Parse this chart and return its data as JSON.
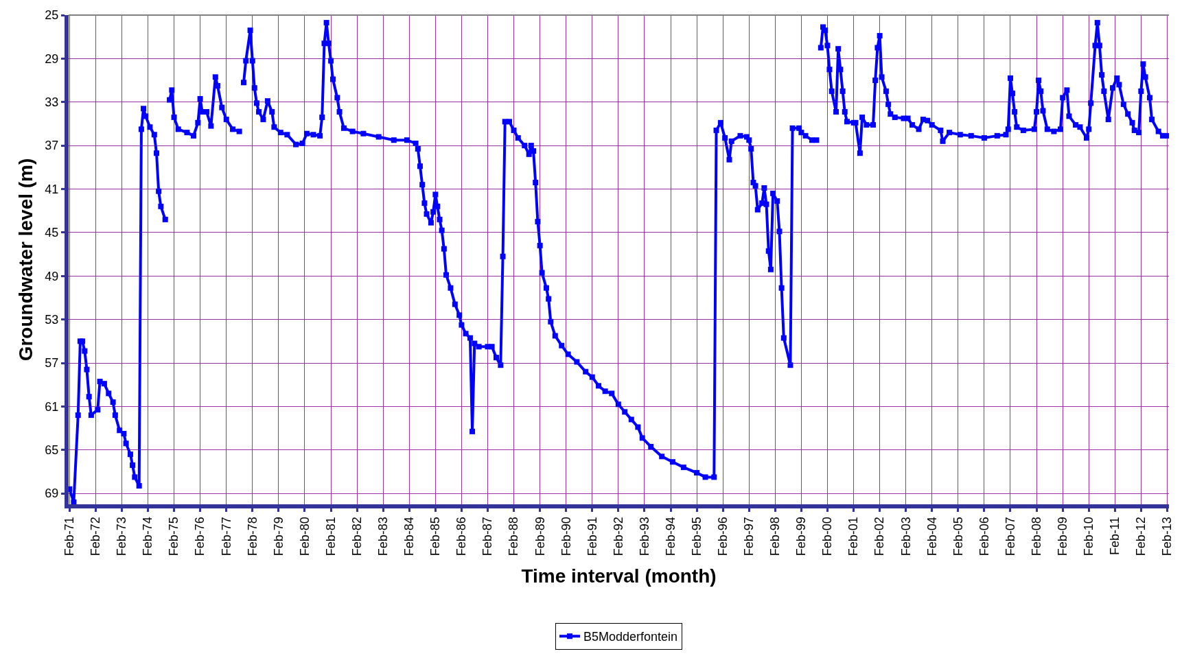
{
  "chart_data": {
    "type": "line",
    "xlabel": "Time interval (month)",
    "ylabel": "Groundwater level (m)",
    "ylim": [
      70,
      25
    ],
    "yticks": [
      25,
      29,
      33,
      37,
      41,
      45,
      49,
      53,
      57,
      61,
      65,
      69
    ],
    "xlim": [
      "1971-01-20",
      "2013-02-25"
    ],
    "xticks": [
      {
        "value": "1971-02",
        "label": "Feb-71"
      },
      {
        "value": "1972-02",
        "label": "Feb-72"
      },
      {
        "value": "1973-02",
        "label": "Feb-73"
      },
      {
        "value": "1974-02",
        "label": "Feb-74"
      },
      {
        "value": "1975-02",
        "label": "Feb-75"
      },
      {
        "value": "1976-02",
        "label": "Feb-76"
      },
      {
        "value": "1977-02",
        "label": "Feb-77"
      },
      {
        "value": "1978-02",
        "label": "Feb-78"
      },
      {
        "value": "1979-02",
        "label": "Feb-79"
      },
      {
        "value": "1980-02",
        "label": "Feb-80"
      },
      {
        "value": "1981-02",
        "label": "Feb-81"
      },
      {
        "value": "1982-02",
        "label": "Feb-82"
      },
      {
        "value": "1983-02",
        "label": "Feb-83"
      },
      {
        "value": "1984-02",
        "label": "Feb-84"
      },
      {
        "value": "1985-02",
        "label": "Feb-85"
      },
      {
        "value": "1986-02",
        "label": "Feb-86"
      },
      {
        "value": "1987-02",
        "label": "Feb-87"
      },
      {
        "value": "1988-02",
        "label": "Feb-88"
      },
      {
        "value": "1989-02",
        "label": "Feb-89"
      },
      {
        "value": "1990-02",
        "label": "Feb-90"
      },
      {
        "value": "1991-02",
        "label": "Feb-91"
      },
      {
        "value": "1992-02",
        "label": "Feb-92"
      },
      {
        "value": "1993-02",
        "label": "Feb-93"
      },
      {
        "value": "1994-02",
        "label": "Feb-94"
      },
      {
        "value": "1995-02",
        "label": "Feb-95"
      },
      {
        "value": "1996-02",
        "label": "Feb-96"
      },
      {
        "value": "1997-02",
        "label": "Feb-97"
      },
      {
        "value": "1998-02",
        "label": "Feb-98"
      },
      {
        "value": "1999-02",
        "label": "Feb-99"
      },
      {
        "value": "2000-02",
        "label": "Feb-00"
      },
      {
        "value": "2001-02",
        "label": "Feb-01"
      },
      {
        "value": "2002-02",
        "label": "Feb-02"
      },
      {
        "value": "2003-02",
        "label": "Feb-03"
      },
      {
        "value": "2004-02",
        "label": "Feb-04"
      },
      {
        "value": "2005-02",
        "label": "Feb-05"
      },
      {
        "value": "2006-02",
        "label": "Feb-06"
      },
      {
        "value": "2007-02",
        "label": "Feb-07"
      },
      {
        "value": "2008-02",
        "label": "Feb-08"
      },
      {
        "value": "2009-02",
        "label": "Feb-09"
      },
      {
        "value": "2010-02",
        "label": "Feb-10"
      },
      {
        "value": "2011-02",
        "label": "Feb-11"
      },
      {
        "value": "2012-02",
        "label": "Feb-12"
      },
      {
        "value": "2013-02",
        "label": "Feb-13"
      }
    ],
    "grid": true,
    "legend": "bottom",
    "marker": "square",
    "line_style": "solid",
    "x": [
      "1971-02",
      "1971-04",
      "1971-06",
      "1971-07",
      "1971-08",
      "1971-09",
      "1971-10",
      "1971-11",
      "1971-12",
      "1972-03",
      "1972-04",
      "1972-06",
      "1972-08",
      "1972-10",
      "1972-11",
      "1973-01",
      "1973-03",
      "1973-04",
      "1973-06",
      "1973-07",
      "1973-08",
      "1973-10",
      "1973-11",
      "1973-12",
      "1974-01",
      "1974-03",
      "1974-05",
      "1974-06",
      "1974-07",
      "1974-08",
      "1974-10",
      "1974-11",
      "1974-12",
      "1975-01",
      "1975-02",
      "1975-04",
      "1975-08",
      "1975-11",
      "1976-01",
      "1976-02",
      "1976-03",
      "1976-05",
      "1976-07",
      "1976-09",
      "1976-10",
      "1976-12",
      "1977-02",
      "1977-05",
      "1977-08",
      "1977-09",
      "1977-10",
      "1977-11",
      "1978-01",
      "1978-02",
      "1978-03",
      "1978-04",
      "1978-05",
      "1978-07",
      "1978-09",
      "1978-11",
      "1978-12",
      "1979-03",
      "1979-06",
      "1979-10",
      "1980-01",
      "1980-03",
      "1980-06",
      "1980-09",
      "1980-10",
      "1980-11",
      "1980-12",
      "1981-01",
      "1981-02",
      "1981-03",
      "1981-05",
      "1981-06",
      "1981-08",
      "1981-12",
      "1982-05",
      "1982-12",
      "1983-07",
      "1984-01",
      "1984-05",
      "1984-06",
      "1984-07",
      "1984-08",
      "1984-09",
      "1984-10",
      "1984-12",
      "1985-01",
      "1985-02",
      "1985-03",
      "1985-04",
      "1985-05",
      "1985-06",
      "1985-07",
      "1985-09",
      "1985-11",
      "1986-01",
      "1986-02",
      "1986-04",
      "1986-06",
      "1986-07",
      "1986-08",
      "1986-10",
      "1987-02",
      "1987-04",
      "1987-06",
      "1987-08",
      "1987-09",
      "1987-10",
      "1987-12",
      "1988-02",
      "1988-04",
      "1988-07",
      "1988-09",
      "1988-10",
      "1988-11",
      "1988-12",
      "1989-01",
      "1989-02",
      "1989-03",
      "1989-05",
      "1989-06",
      "1989-07",
      "1989-09",
      "1989-12",
      "1990-03",
      "1990-07",
      "1990-11",
      "1991-02",
      "1991-05",
      "1991-08",
      "1991-11",
      "1992-02",
      "1992-05",
      "1992-08",
      "1992-11",
      "1993-01",
      "1993-05",
      "1993-10",
      "1994-03",
      "1994-08",
      "1995-02",
      "1995-06",
      "1995-10",
      "1995-11",
      "1996-01",
      "1996-03",
      "1996-05",
      "1996-06",
      "1996-10",
      "1997-01",
      "1997-02",
      "1997-03",
      "1997-04",
      "1997-05",
      "1997-06",
      "1997-08",
      "1997-09",
      "1997-10",
      "1997-11",
      "1997-12",
      "1998-01",
      "1998-03",
      "1998-04",
      "1998-05",
      "1998-06",
      "1998-09",
      "1998-10",
      "1999-01",
      "1999-02",
      "1999-04",
      "1999-07",
      "1999-09",
      "1999-10",
      "1999-11",
      "1999-12",
      "2000-01",
      "2000-02",
      "2000-03",
      "2000-04",
      "2000-06",
      "2000-07",
      "2000-08",
      "2000-09",
      "2000-10",
      "2000-11",
      "2001-02",
      "2001-03",
      "2001-05",
      "2001-06",
      "2001-08",
      "2001-11",
      "2001-12",
      "2002-01",
      "2002-02",
      "2002-03",
      "2002-05",
      "2002-06",
      "2002-07",
      "2002-09",
      "2003-01",
      "2003-03",
      "2003-05",
      "2003-08",
      "2003-10",
      "2003-12",
      "2004-02",
      "2004-06",
      "2004-07",
      "2004-10",
      "2005-03",
      "2005-08",
      "2006-02",
      "2006-08",
      "2006-12",
      "2007-01",
      "2007-02",
      "2007-03",
      "2007-04",
      "2007-05",
      "2007-08",
      "2008-01",
      "2008-02",
      "2008-03",
      "2008-04",
      "2008-05",
      "2008-07",
      "2008-10",
      "2009-01",
      "2009-02",
      "2009-04",
      "2009-05",
      "2009-08",
      "2009-10",
      "2010-01",
      "2010-02",
      "2010-03",
      "2010-05",
      "2010-06",
      "2010-07",
      "2010-08",
      "2010-09",
      "2010-11",
      "2011-01",
      "2011-03",
      "2011-04",
      "2011-06",
      "2011-08",
      "2011-10",
      "2011-11",
      "2012-01",
      "2012-02",
      "2012-03",
      "2012-04",
      "2012-06",
      "2012-07",
      "2012-10",
      "2012-12",
      "2013-02"
    ],
    "series": [
      {
        "name": "B5Modderfontein",
        "color": "#0000ff",
        "values": [
          68.6,
          69.8,
          61.8,
          55,
          55,
          55.9,
          57.6,
          60.1,
          61.8,
          61.3,
          58.7,
          58.9,
          59.8,
          60.6,
          61.8,
          63.2,
          63.5,
          64.4,
          65.4,
          66.4,
          67.5,
          68.3,
          35.5,
          33.6,
          34.3,
          35.3,
          36,
          37.7,
          41.2,
          42.6,
          43.8,
          null,
          32.8,
          31.9,
          34.4,
          35.5,
          35.8,
          36.1,
          34.9,
          32.7,
          33.9,
          33.9,
          35.2,
          30.7,
          31.5,
          33.5,
          34.6,
          35.5,
          35.7,
          null,
          31.2,
          29.2,
          26.4,
          29.2,
          31.7,
          33.1,
          33.9,
          34.6,
          32.9,
          33.9,
          35.3,
          35.8,
          36,
          36.9,
          36.8,
          35.9,
          36,
          36.1,
          34.4,
          27.6,
          25.7,
          27.6,
          29.2,
          30.9,
          32.6,
          33.9,
          35.4,
          35.7,
          35.9,
          36.2,
          36.5,
          36.5,
          36.8,
          37.3,
          38.9,
          40.6,
          42.3,
          43.3,
          44.1,
          43.1,
          41.5,
          42.6,
          43.8,
          44.8,
          46.5,
          48.9,
          50.1,
          51.6,
          52.6,
          53.5,
          54.3,
          54.7,
          63.3,
          55.2,
          55.5,
          55.5,
          55.5,
          56.5,
          57.2,
          47.2,
          34.8,
          34.8,
          35.6,
          36.3,
          37,
          37.8,
          37,
          37.5,
          40.4,
          44,
          46.2,
          48.7,
          50.1,
          51.1,
          53.2,
          54.5,
          55.4,
          56.2,
          56.9,
          57.8,
          58.3,
          59.1,
          59.6,
          59.8,
          60.8,
          61.5,
          62.2,
          62.9,
          63.9,
          64.7,
          65.6,
          66.1,
          66.6,
          67.1,
          67.5,
          67.5,
          35.6,
          34.9,
          36.3,
          38.3,
          36.6,
          36.1,
          36.2,
          36.5,
          37.3,
          40.4,
          40.7,
          42.9,
          42.3,
          40.9,
          42.4,
          46.7,
          48.4,
          41.4,
          42.1,
          44.9,
          50.1,
          54.7,
          57.2,
          35.4,
          35.4,
          35.8,
          36.1,
          36.5,
          36.5,
          null,
          28,
          26.1,
          26.4,
          27.8,
          30,
          32,
          33.9,
          28.1,
          30,
          32,
          33.9,
          34.8,
          34.9,
          34.9,
          37.7,
          34.4,
          35.1,
          35.1,
          31,
          28,
          26.9,
          30.7,
          32,
          33.2,
          34.1,
          34.4,
          34.5,
          34.5,
          35.1,
          35.5,
          34.6,
          34.7,
          35.1,
          35.6,
          36.6,
          35.8,
          36,
          36.1,
          36.3,
          36.1,
          36,
          35.5,
          30.8,
          32.2,
          33.9,
          35.3,
          35.6,
          35.5,
          33.9,
          31,
          32,
          33.8,
          35.5,
          35.7,
          35.5,
          32.6,
          31.9,
          34.3,
          35.1,
          35.3,
          36.3,
          35.5,
          33.1,
          27.8,
          25.7,
          27.8,
          30.5,
          32,
          34.6,
          31.7,
          30.8,
          31.4,
          33.2,
          34.1,
          34.9,
          35.6,
          35.8,
          32,
          29.5,
          30.7,
          32.6,
          34.6,
          35.7,
          36.1,
          36.1
        ]
      }
    ]
  }
}
